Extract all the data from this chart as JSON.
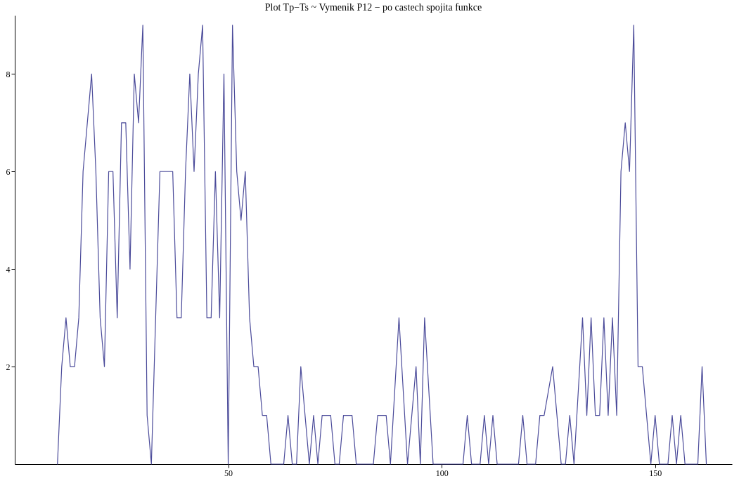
{
  "chart_data": {
    "type": "line",
    "title": "Plot Tp−Ts ~ Vymenik P12 − po castech spojita funkce",
    "x": [
      10,
      11,
      12,
      13,
      14,
      15,
      16,
      18,
      19,
      20,
      21,
      22,
      23,
      24,
      25,
      26,
      27,
      28,
      29,
      30,
      31,
      32,
      34,
      37,
      38,
      39,
      40,
      41,
      42,
      43,
      44,
      45,
      46,
      47,
      48,
      49,
      50,
      51,
      52,
      53,
      54,
      55,
      56,
      57,
      58,
      59,
      60,
      63,
      64,
      65,
      66,
      67,
      69,
      70,
      71,
      72,
      74,
      75,
      76,
      77,
      79,
      80,
      84,
      85,
      87,
      88,
      90,
      92,
      94,
      95,
      96,
      98,
      105,
      106,
      107,
      109,
      110,
      111,
      112,
      113,
      118,
      119,
      120,
      122,
      123,
      124,
      126,
      128,
      129,
      130,
      131,
      133,
      134,
      135,
      136,
      137,
      138,
      139,
      140,
      141,
      142,
      143,
      144,
      145,
      146,
      147,
      149,
      150,
      151,
      153,
      154,
      155,
      156,
      157,
      160,
      161,
      162
    ],
    "series": [
      {
        "color": "#4b4b9a",
        "values": [
          0,
          2,
          3,
          2,
          2,
          3,
          6,
          8,
          6,
          3,
          2,
          6,
          6,
          3,
          7,
          7,
          4,
          8,
          7,
          9,
          1,
          0,
          6,
          6,
          3,
          3,
          6,
          8,
          6,
          8,
          9,
          3,
          3,
          6,
          3,
          8,
          0,
          9,
          6,
          5,
          6,
          3,
          2,
          2,
          1,
          1,
          0,
          0,
          1,
          0,
          0,
          2,
          0,
          1,
          0,
          1,
          1,
          0,
          0,
          1,
          1,
          0,
          0,
          1,
          1,
          0,
          3,
          0,
          2,
          0,
          3,
          0,
          0,
          1,
          0,
          0,
          1,
          0,
          1,
          0,
          0,
          1,
          0,
          0,
          1,
          1,
          2,
          0,
          0,
          1,
          0,
          3,
          1,
          3,
          1,
          1,
          3,
          1,
          3,
          1,
          6,
          7,
          6,
          9,
          2,
          2,
          0,
          1,
          0,
          0,
          1,
          0,
          1,
          0,
          0,
          2,
          0
        ]
      }
    ],
    "xlim": [
      0,
      168
    ],
    "xticks": [
      50,
      100,
      150
    ],
    "ylim": [
      0,
      9.2
    ],
    "yticks": [
      2,
      4,
      6,
      8
    ],
    "grid": false,
    "marker": "none",
    "line_style": "solid"
  }
}
